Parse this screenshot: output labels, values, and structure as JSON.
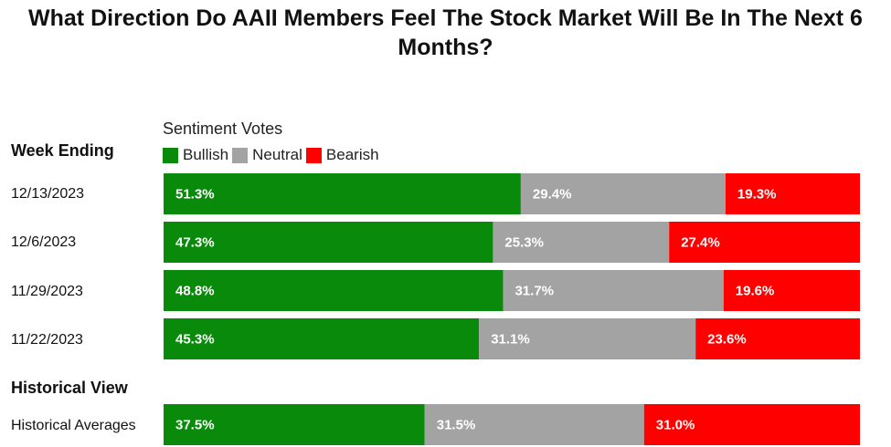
{
  "title": "What Direction Do AAII Members Feel The Stock Market Will Be In The Next 6 Months?",
  "headers": {
    "week_ending": "Week Ending",
    "historical_view": "Historical View"
  },
  "legend": {
    "title": "Sentiment Votes",
    "items": [
      {
        "name": "Bullish",
        "color": "#0a8a0a"
      },
      {
        "name": "Neutral",
        "color": "#a3a3a3"
      },
      {
        "name": "Bearish",
        "color": "#ff0000"
      }
    ]
  },
  "chart_data": {
    "type": "bar",
    "orientation": "horizontal",
    "stacked": true,
    "percent_stacked": true,
    "title": "What Direction Do AAII Members Feel The Stock Market Will Be In The Next 6 Months?",
    "categories": [
      "12/13/2023",
      "12/6/2023",
      "11/29/2023",
      "11/22/2023",
      "Historical Averages"
    ],
    "series": [
      {
        "name": "Bullish",
        "color": "#0a8a0a",
        "values": [
          51.3,
          47.3,
          48.8,
          45.3,
          37.5
        ],
        "labels": [
          "51.3%",
          "47.3%",
          "48.8%",
          "45.3%",
          "37.5%"
        ]
      },
      {
        "name": "Neutral",
        "color": "#a3a3a3",
        "values": [
          29.4,
          25.3,
          31.7,
          31.1,
          31.5
        ],
        "labels": [
          "29.4%",
          "25.3%",
          "31.7%",
          "31.1%",
          "31.5%"
        ]
      },
      {
        "name": "Bearish",
        "color": "#ff0000",
        "values": [
          19.3,
          27.4,
          19.6,
          23.6,
          31.0
        ],
        "labels": [
          "19.3%",
          "27.4%",
          "19.6%",
          "23.6%",
          "31.0%"
        ]
      }
    ],
    "legend_position": "top-left",
    "grid": false
  }
}
